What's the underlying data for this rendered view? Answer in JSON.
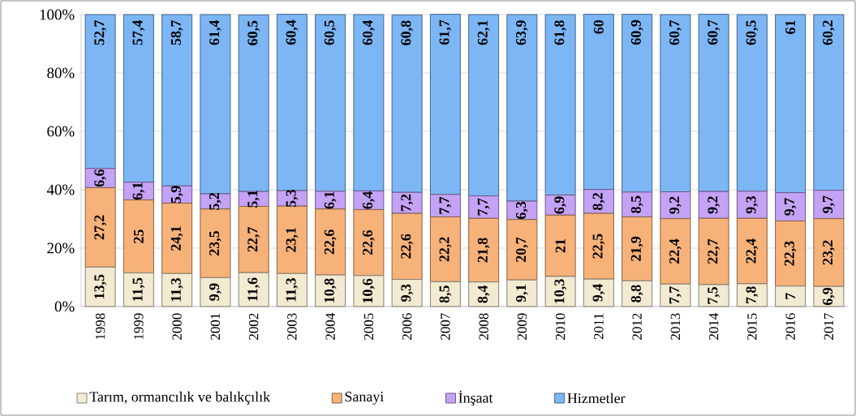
{
  "chart_data": {
    "type": "bar",
    "stacked": true,
    "categories": [
      "1998",
      "1999",
      "2000",
      "2001",
      "2002",
      "2003",
      "2004",
      "2005",
      "2006",
      "2007",
      "2008",
      "2009",
      "2010",
      "2011",
      "2012",
      "2013",
      "2014",
      "2015",
      "2016",
      "2017"
    ],
    "ylim": [
      0,
      100
    ],
    "yticks": [
      {
        "value": 0,
        "label": "0%"
      },
      {
        "value": 20,
        "label": "20%"
      },
      {
        "value": 40,
        "label": "40%"
      },
      {
        "value": 60,
        "label": "60%"
      },
      {
        "value": 80,
        "label": "80%"
      },
      {
        "value": 100,
        "label": "100%"
      }
    ],
    "grid": "y",
    "legend": "bottom",
    "series": [
      {
        "name": "Tarım, ormancılık ve balıkçılık",
        "color": "#f3ead2",
        "values": [
          13.5,
          11.5,
          11.3,
          9.9,
          11.6,
          11.3,
          10.8,
          10.6,
          9.3,
          8.5,
          8.4,
          9.1,
          10.3,
          9.4,
          8.8,
          7.7,
          7.5,
          7.8,
          7,
          6.9
        ],
        "value_labels": [
          "13,5",
          "11,5",
          "11,3",
          "9,9",
          "11,6",
          "11,3",
          "10,8",
          "10,6",
          "9,3",
          "8,5",
          "8,4",
          "9,1",
          "10,3",
          "9,4",
          "8,8",
          "7,7",
          "7,5",
          "7,8",
          "7",
          "6,9"
        ]
      },
      {
        "name": "Sanayi",
        "color": "#f7b27a",
        "values": [
          27.2,
          25,
          24.1,
          23.5,
          22.7,
          23.1,
          22.6,
          22.6,
          22.6,
          22.2,
          21.8,
          20.7,
          21,
          22.5,
          21.9,
          22.4,
          22.7,
          22.4,
          22.3,
          23.2
        ],
        "value_labels": [
          "27,2",
          "25",
          "24,1",
          "23,5",
          "22,7",
          "23,1",
          "22,6",
          "22,6",
          "22,6",
          "22,2",
          "21,8",
          "20,7",
          "21",
          "22,5",
          "21,9",
          "22,4",
          "22,7",
          "22,4",
          "22,3",
          "23,2"
        ]
      },
      {
        "name": "İnşaat",
        "color": "#c4a2f5",
        "values": [
          6.6,
          6.1,
          5.9,
          5.2,
          5.1,
          5.3,
          6.1,
          6.4,
          7.2,
          7.7,
          7.7,
          6.3,
          6.9,
          8.2,
          8.5,
          9.2,
          9.2,
          9.3,
          9.7,
          9.7
        ],
        "value_labels": [
          "6,6",
          "6,1",
          "5,9",
          "5,2",
          "5,1",
          "5,3",
          "6,1",
          "6,4",
          "7,2",
          "7,7",
          "7,7",
          "6,3",
          "6,9",
          "8,2",
          "8,5",
          "9,2",
          "9,2",
          "9,3",
          "9,7",
          "9,7"
        ]
      },
      {
        "name": "Hizmetler",
        "color": "#7db6f5",
        "values": [
          52.7,
          57.4,
          58.7,
          61.4,
          60.5,
          60.4,
          60.5,
          60.4,
          60.8,
          61.7,
          62.1,
          63.9,
          61.8,
          60,
          60.9,
          60.7,
          60.7,
          60.5,
          61,
          60.2
        ],
        "value_labels": [
          "52,7",
          "57,4",
          "58,7",
          "61,4",
          "60,5",
          "60,4",
          "60,5",
          "60,4",
          "60,8",
          "61,7",
          "62,1",
          "63,9",
          "61,8",
          "60",
          "60,9",
          "60,7",
          "60,7",
          "60,5",
          "61",
          "60,2"
        ]
      }
    ]
  }
}
